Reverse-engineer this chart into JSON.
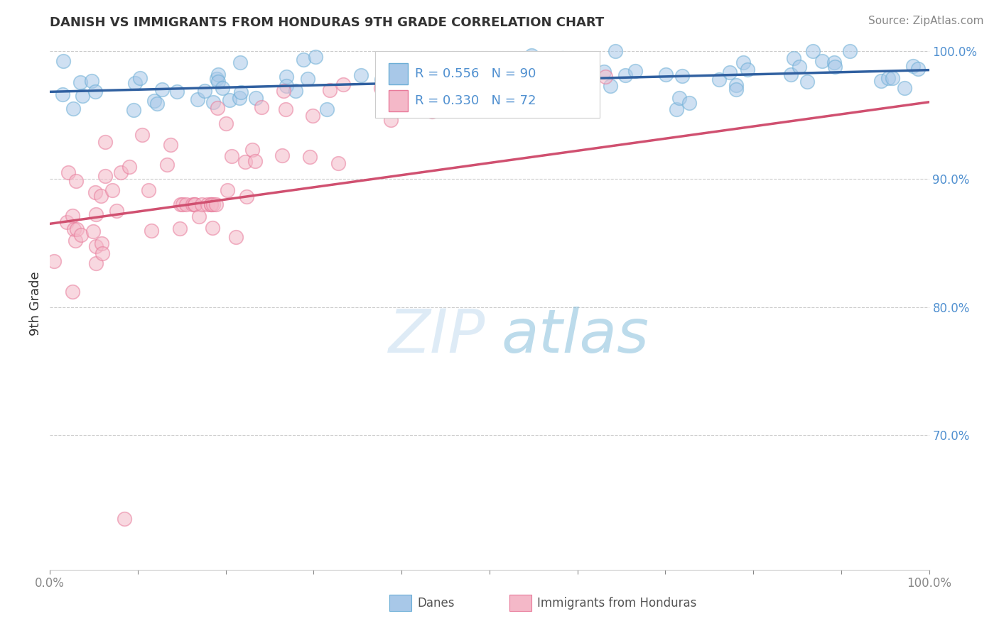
{
  "title": "DANISH VS IMMIGRANTS FROM HONDURAS 9TH GRADE CORRELATION CHART",
  "source": "Source: ZipAtlas.com",
  "ylabel": "9th Grade",
  "danes_R": 0.556,
  "danes_N": 90,
  "honduras_R": 0.33,
  "honduras_N": 72,
  "danes_color": "#a8c8e8",
  "danes_edge_color": "#6baed6",
  "honduras_color": "#f4b8c8",
  "honduras_edge_color": "#e87a9a",
  "danes_line_color": "#3060a0",
  "honduras_line_color": "#d05070",
  "legend_danes": "Danes",
  "legend_honduras": "Immigrants from Honduras",
  "yaxis_ticks": [
    0.7,
    0.8,
    0.9,
    1.0
  ],
  "yaxis_labels": [
    "70.0%",
    "80.0%",
    "90.0%",
    "100.0%"
  ],
  "ylim_min": 0.595,
  "ylim_max": 1.01,
  "xlim_min": 0.0,
  "xlim_max": 1.0,
  "watermark_zip": "ZIP",
  "watermark_atlas": "atlas",
  "title_fontsize": 13,
  "source_fontsize": 11,
  "tick_fontsize": 12,
  "right_tick_color": "#5090d0"
}
